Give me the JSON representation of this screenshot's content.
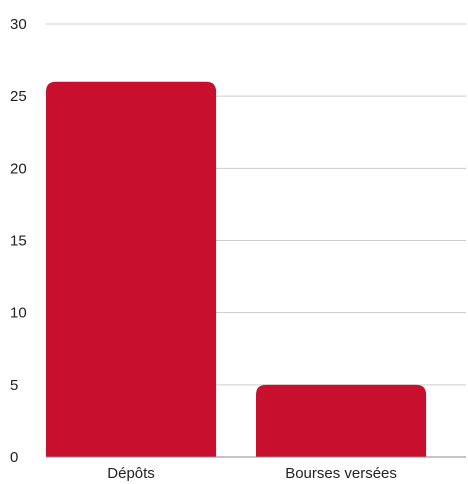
{
  "chart_data": {
    "type": "bar",
    "categories": [
      "Dépôts",
      "Bourses versées"
    ],
    "values": [
      26,
      5
    ],
    "ylim": [
      0,
      30
    ],
    "yticks": [
      0,
      5,
      10,
      15,
      20,
      25,
      30
    ],
    "grid": true,
    "bar_color": "#c8102e"
  }
}
